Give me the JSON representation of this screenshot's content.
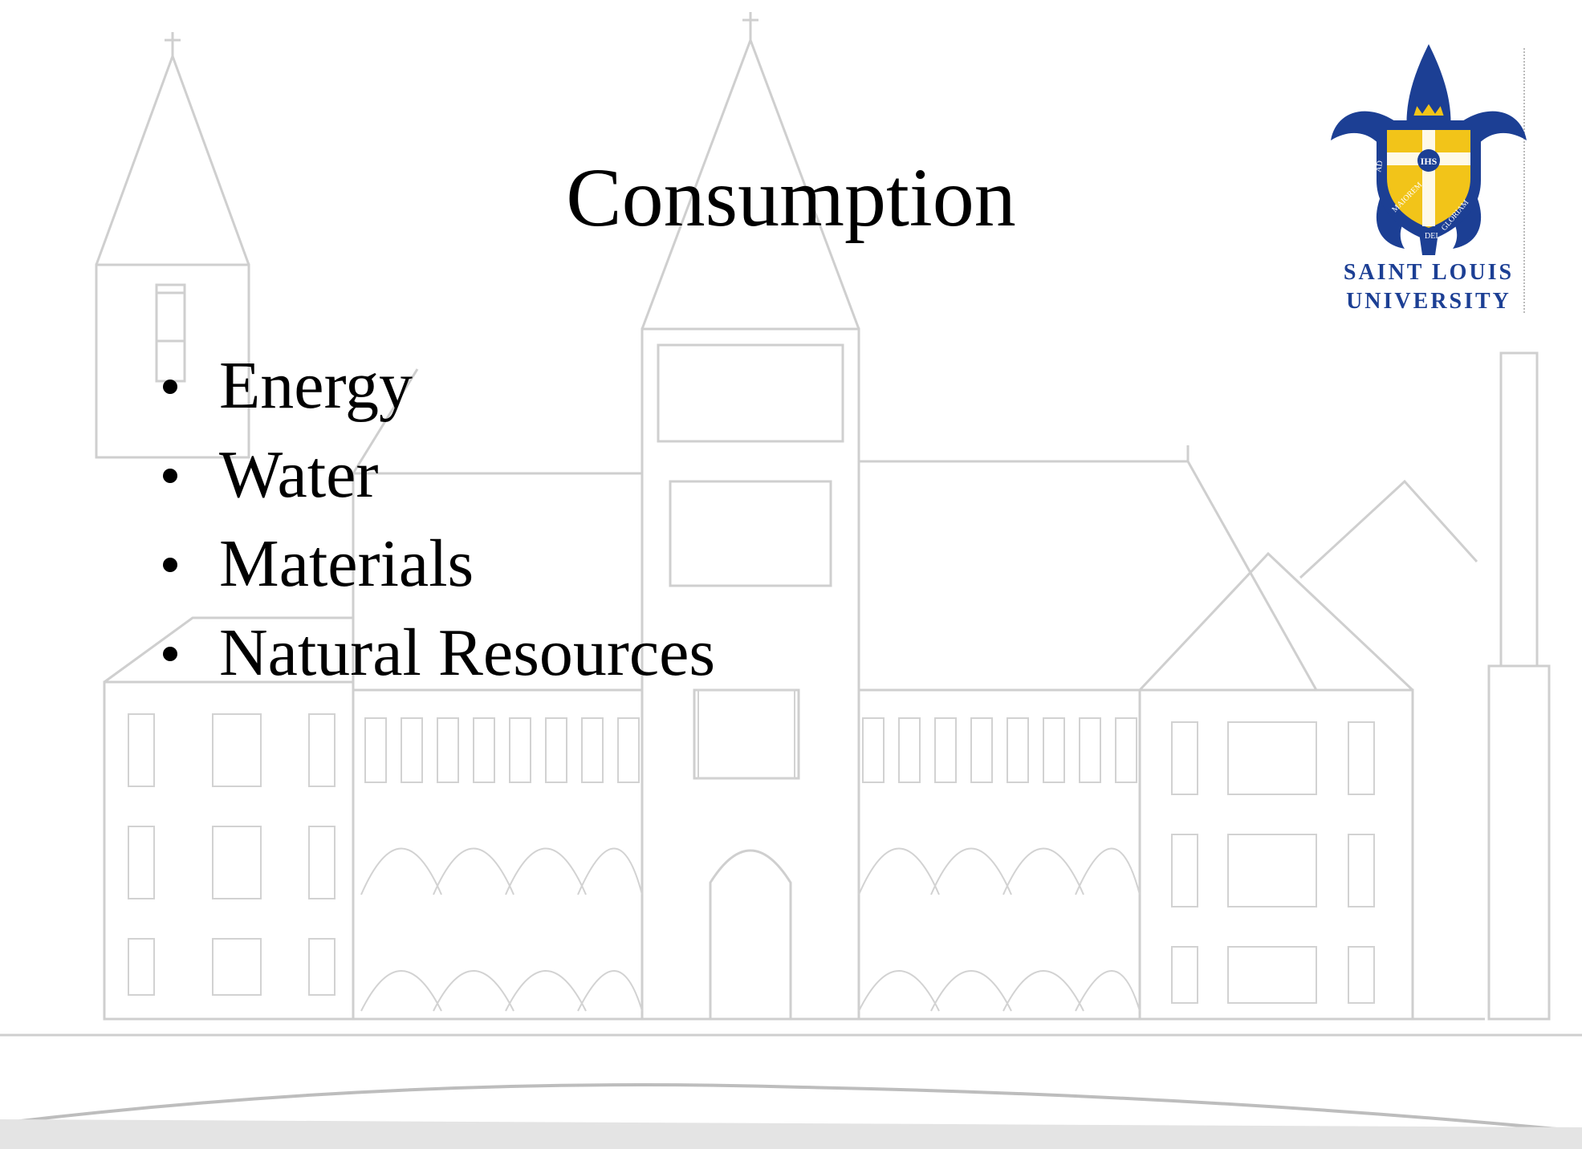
{
  "slide": {
    "title": "Consumption",
    "bullets": [
      "Energy",
      "Water",
      "Materials",
      "Natural Resources"
    ]
  },
  "logo": {
    "line1": "SAINT LOUIS",
    "line2": "UNIVERSITY",
    "motto": "AD MAIOREM DEI GLORIAM",
    "monogram": "IHS",
    "colors": {
      "blue": "#1c3f94",
      "gold": "#f2c419",
      "white": "#ffffff"
    }
  },
  "background": {
    "icon": "building-facade-drawing",
    "line_color": "#c8c8c8"
  }
}
